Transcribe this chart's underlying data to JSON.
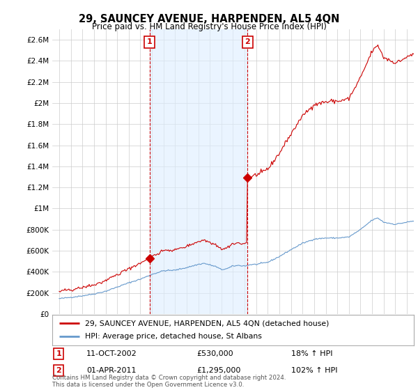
{
  "title": "29, SAUNCEY AVENUE, HARPENDEN, AL5 4QN",
  "subtitle": "Price paid vs. HM Land Registry's House Price Index (HPI)",
  "legend_line1": "29, SAUNCEY AVENUE, HARPENDEN, AL5 4QN (detached house)",
  "legend_line2": "HPI: Average price, detached house, St Albans",
  "footnote": "Contains HM Land Registry data © Crown copyright and database right 2024.\nThis data is licensed under the Open Government Licence v3.0.",
  "sale1_date": "11-OCT-2002",
  "sale1_price": "£530,000",
  "sale1_hpi": "18% ↑ HPI",
  "sale2_date": "01-APR-2011",
  "sale2_price": "£1,295,000",
  "sale2_hpi": "102% ↑ HPI",
  "red_color": "#cc0000",
  "blue_color": "#6699cc",
  "shade_color": "#ddeeff",
  "background_color": "#ffffff",
  "grid_color": "#cccccc",
  "ylim_max": 2700000,
  "sale1_x": 2002.79,
  "sale1_y": 530000,
  "sale2_x": 2011.25,
  "sale2_y": 1295000,
  "yticks": [
    0,
    200000,
    400000,
    600000,
    800000,
    1000000,
    1200000,
    1400000,
    1600000,
    1800000,
    2000000,
    2200000,
    2400000,
    2600000
  ],
  "ytick_labels": [
    "£0",
    "£200K",
    "£400K",
    "£600K",
    "£800K",
    "£1M",
    "£1.2M",
    "£1.4M",
    "£1.6M",
    "£1.8M",
    "£2M",
    "£2.2M",
    "£2.4M",
    "£2.6M"
  ],
  "xlim": [
    1994.4,
    2025.6
  ],
  "xticks": [
    1995,
    1996,
    1997,
    1998,
    1999,
    2000,
    2001,
    2002,
    2003,
    2004,
    2005,
    2006,
    2007,
    2008,
    2009,
    2010,
    2011,
    2012,
    2013,
    2014,
    2015,
    2016,
    2017,
    2018,
    2019,
    2020,
    2021,
    2022,
    2023,
    2024,
    2025
  ]
}
